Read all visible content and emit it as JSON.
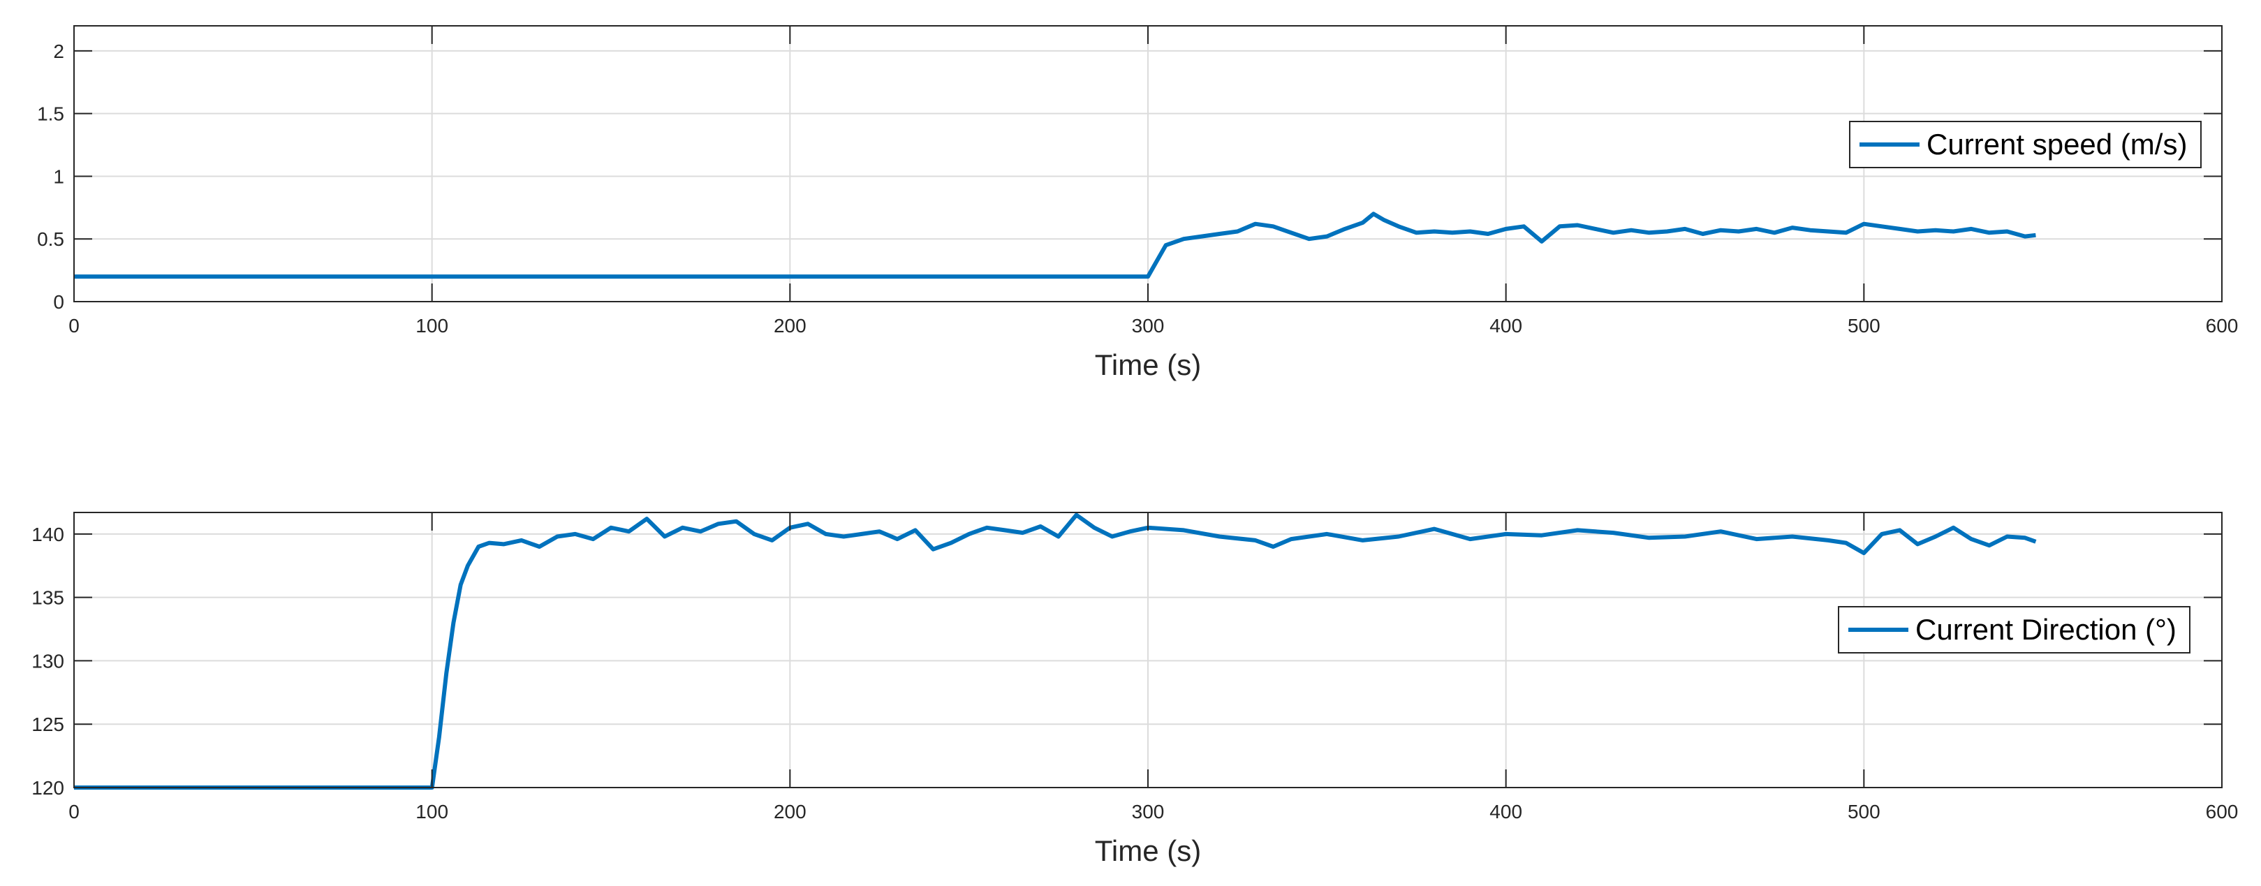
{
  "chart_data": [
    {
      "type": "line",
      "xlabel": "Time (s)",
      "ylabel": "",
      "xlim": [
        0,
        600
      ],
      "ylim": [
        0,
        2.2
      ],
      "xticks": [
        0,
        100,
        200,
        300,
        400,
        500,
        600
      ],
      "yticks": [
        0,
        0.5,
        1,
        1.5,
        2
      ],
      "ytick_labels": [
        "0",
        "0.5",
        "1",
        "1.5",
        "2"
      ],
      "grid": true,
      "legend": "right",
      "series": [
        {
          "name": "Current speed (m/s)",
          "color": "#0072BD",
          "x": [
            0,
            100,
            200,
            299,
            300,
            305,
            310,
            315,
            320,
            325,
            330,
            335,
            340,
            345,
            350,
            355,
            360,
            363,
            366,
            370,
            375,
            380,
            385,
            390,
            395,
            400,
            405,
            410,
            415,
            420,
            425,
            430,
            435,
            440,
            445,
            450,
            455,
            460,
            465,
            470,
            475,
            480,
            485,
            490,
            495,
            500,
            505,
            510,
            515,
            520,
            525,
            530,
            535,
            540,
            545,
            548
          ],
          "y": [
            0.2,
            0.2,
            0.2,
            0.2,
            0.2,
            0.45,
            0.5,
            0.52,
            0.54,
            0.56,
            0.62,
            0.6,
            0.55,
            0.5,
            0.52,
            0.58,
            0.63,
            0.7,
            0.65,
            0.6,
            0.55,
            0.56,
            0.55,
            0.56,
            0.54,
            0.58,
            0.6,
            0.48,
            0.6,
            0.61,
            0.58,
            0.55,
            0.57,
            0.55,
            0.56,
            0.58,
            0.54,
            0.57,
            0.56,
            0.58,
            0.55,
            0.59,
            0.57,
            0.56,
            0.55,
            0.62,
            0.6,
            0.58,
            0.56,
            0.57,
            0.56,
            0.58,
            0.55,
            0.56,
            0.52,
            0.53
          ]
        }
      ]
    },
    {
      "type": "line",
      "xlabel": "Time (s)",
      "ylabel": "",
      "xlim": [
        0,
        600
      ],
      "ylim": [
        120,
        141.7
      ],
      "xticks": [
        0,
        100,
        200,
        300,
        400,
        500,
        600
      ],
      "yticks": [
        120,
        125,
        130,
        135,
        140
      ],
      "ytick_labels": [
        "120",
        "125",
        "130",
        "135",
        "140"
      ],
      "grid": true,
      "legend": "right",
      "series": [
        {
          "name": "Current Direction (°)",
          "color": "#0072BD",
          "x": [
            0,
            50,
            99,
            100,
            102,
            104,
            106,
            108,
            110,
            113,
            116,
            120,
            125,
            130,
            135,
            140,
            145,
            150,
            155,
            160,
            165,
            170,
            175,
            180,
            185,
            190,
            195,
            200,
            205,
            210,
            215,
            220,
            225,
            230,
            235,
            240,
            245,
            250,
            255,
            260,
            265,
            270,
            275,
            280,
            285,
            290,
            295,
            300,
            310,
            320,
            330,
            335,
            340,
            350,
            360,
            370,
            380,
            390,
            400,
            410,
            420,
            430,
            440,
            450,
            460,
            470,
            480,
            490,
            495,
            500,
            505,
            510,
            515,
            520,
            525,
            530,
            535,
            540,
            545,
            548
          ],
          "y": [
            120,
            120,
            120,
            120,
            124,
            129,
            133,
            136,
            137.5,
            139,
            139.3,
            139.2,
            139.5,
            139,
            139.8,
            140,
            139.6,
            140.5,
            140.2,
            141.2,
            139.8,
            140.5,
            140.2,
            140.8,
            141,
            140,
            139.5,
            140.5,
            140.8,
            140,
            139.8,
            140,
            140.2,
            139.6,
            140.3,
            138.8,
            139.3,
            140,
            140.5,
            140.3,
            140.1,
            140.6,
            139.8,
            141.5,
            140.5,
            139.8,
            140.2,
            140.5,
            140.3,
            139.8,
            139.5,
            139,
            139.6,
            140,
            139.5,
            139.8,
            140.4,
            139.6,
            140,
            139.9,
            140.3,
            140.1,
            139.7,
            139.8,
            140.2,
            139.6,
            139.8,
            139.5,
            139.3,
            138.5,
            140,
            140.3,
            139.2,
            139.8,
            140.5,
            139.6,
            139.1,
            139.8,
            139.7,
            139.4
          ]
        }
      ]
    }
  ]
}
